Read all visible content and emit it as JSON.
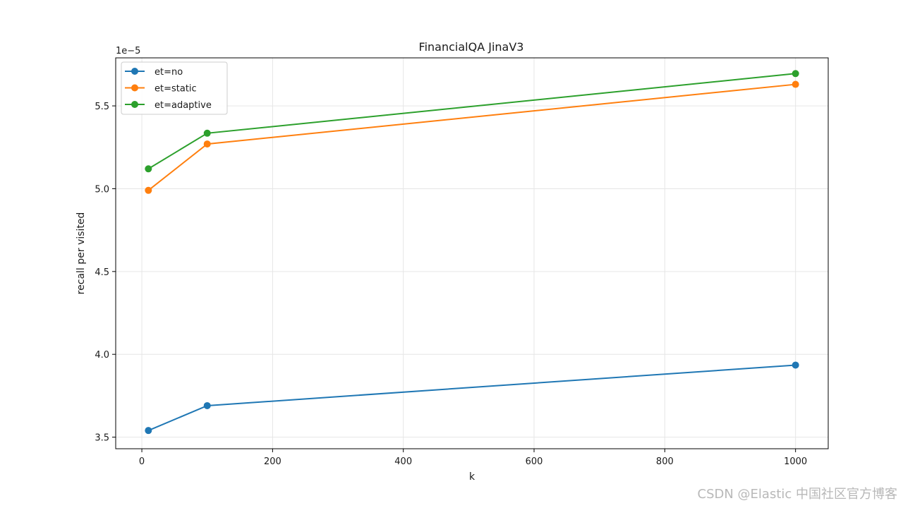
{
  "chart_data": {
    "type": "line",
    "title": "FinancialQA JinaV3",
    "xlabel": "k",
    "ylabel": "recall per visited",
    "y_scale_label": "1e−5",
    "x": [
      10,
      100,
      1000
    ],
    "series": [
      {
        "name": "et=no",
        "color": "#1f77b4",
        "values": [
          3.54,
          3.69,
          3.935
        ]
      },
      {
        "name": "et=static",
        "color": "#ff7f0e",
        "values": [
          4.99,
          5.27,
          5.63
        ]
      },
      {
        "name": "et=adaptive",
        "color": "#2ca02c",
        "values": [
          5.12,
          5.335,
          5.695
        ]
      }
    ],
    "xlim": [
      -40,
      1050
    ],
    "ylim": [
      3.43,
      5.79
    ],
    "x_ticks": [
      0,
      200,
      400,
      600,
      800,
      1000
    ],
    "x_tick_labels": [
      "0",
      "200",
      "400",
      "600",
      "800",
      "1000"
    ],
    "y_ticks": [
      3.5,
      4.0,
      4.5,
      5.0,
      5.5
    ],
    "y_tick_labels": [
      "3.5",
      "4.0",
      "4.5",
      "5.0",
      "5.5"
    ],
    "grid": true,
    "legend_position": "upper-left"
  },
  "watermark": "CSDN @Elastic 中国社区官方博客"
}
